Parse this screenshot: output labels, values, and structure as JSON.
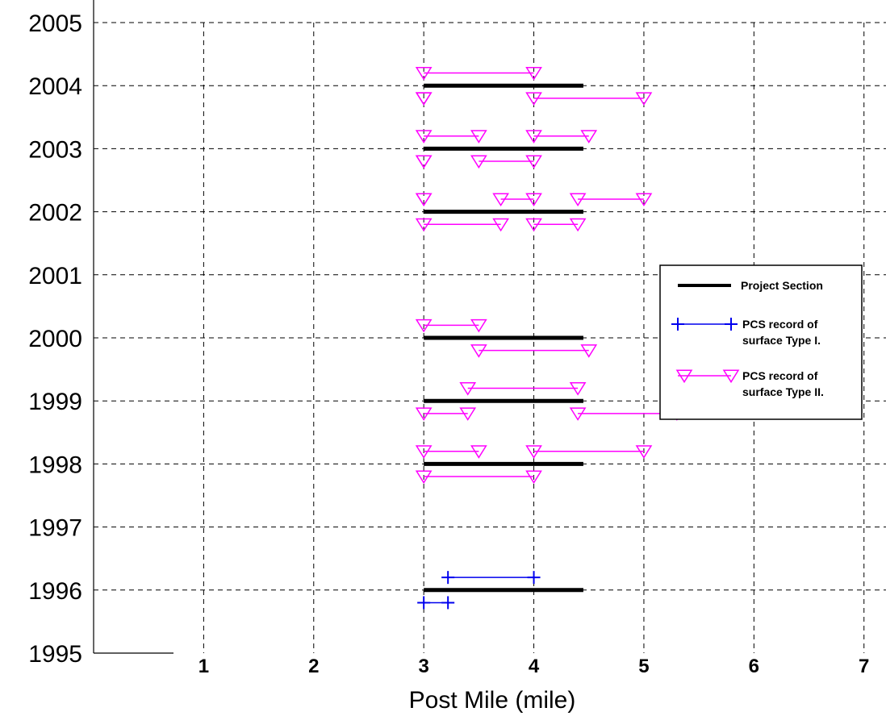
{
  "chart_data": {
    "type": "line",
    "title": "",
    "xlabel": "Post Mile (mile)",
    "ylabel": "",
    "xlim": [
      0,
      7.2
    ],
    "ylim": [
      1995,
      2005
    ],
    "x_ticks": [
      1,
      2,
      3,
      4,
      5,
      6,
      7
    ],
    "y_ticks": [
      1995,
      1996,
      1997,
      1998,
      1999,
      2000,
      2001,
      2002,
      2003,
      2004,
      2005
    ],
    "grid": true,
    "legend_position": "right",
    "legend": [
      {
        "label": "Project Section",
        "series": "project_section"
      },
      {
        "label": "PCS record of",
        "label2": "surface Type I.",
        "series": "type1"
      },
      {
        "label": "PCS record of",
        "label2": "surface Type II.",
        "series": "type2"
      }
    ],
    "series": [
      {
        "id": "project_section",
        "color": "#000000",
        "marker": "none",
        "segments": [
          {
            "x": [
              3.0,
              4.45
            ],
            "y": 1996.0
          },
          {
            "x": [
              3.0,
              4.45
            ],
            "y": 1998.0
          },
          {
            "x": [
              3.0,
              4.45
            ],
            "y": 1999.0
          },
          {
            "x": [
              3.0,
              4.45
            ],
            "y": 2000.0
          },
          {
            "x": [
              3.0,
              4.45
            ],
            "y": 2002.0
          },
          {
            "x": [
              3.0,
              4.45
            ],
            "y": 2003.0
          },
          {
            "x": [
              3.0,
              4.45
            ],
            "y": 2004.0
          }
        ]
      },
      {
        "id": "type1",
        "color": "#0000ee",
        "marker": "plus",
        "segments": [
          {
            "x": [
              3.22,
              4.0
            ],
            "y": 1996.2
          },
          {
            "x": [
              3.0,
              3.22
            ],
            "y": 1995.8
          }
        ]
      },
      {
        "id": "type2",
        "color": "#ff00ff",
        "marker": "triangle-down",
        "segments": [
          {
            "x": [
              3.0,
              3.5
            ],
            "y": 1998.2
          },
          {
            "x": [
              4.0,
              5.0
            ],
            "y": 1998.2
          },
          {
            "x": [
              3.0,
              4.0
            ],
            "y": 1997.8
          },
          {
            "x": [
              3.4,
              4.4
            ],
            "y": 1999.2
          },
          {
            "x": [
              3.0,
              3.4
            ],
            "y": 1998.8
          },
          {
            "x": [
              4.4,
              5.3
            ],
            "y": 1998.8
          },
          {
            "x": [
              3.0,
              3.5
            ],
            "y": 2000.2
          },
          {
            "x": [
              3.5,
              4.5
            ],
            "y": 1999.8
          },
          {
            "x": [
              3.0,
              3.0
            ],
            "y": 2002.2
          },
          {
            "x": [
              3.7,
              4.0
            ],
            "y": 2002.2
          },
          {
            "x": [
              4.4,
              5.0
            ],
            "y": 2002.2
          },
          {
            "x": [
              3.0,
              3.7
            ],
            "y": 2001.8
          },
          {
            "x": [
              4.0,
              4.4
            ],
            "y": 2001.8
          },
          {
            "x": [
              3.0,
              3.5
            ],
            "y": 2003.2
          },
          {
            "x": [
              4.0,
              4.5
            ],
            "y": 2003.2
          },
          {
            "x": [
              3.0,
              3.0
            ],
            "y": 2002.8
          },
          {
            "x": [
              3.5,
              4.0
            ],
            "y": 2002.8
          },
          {
            "x": [
              3.0,
              4.0
            ],
            "y": 2004.2
          },
          {
            "x": [
              3.0,
              3.0
            ],
            "y": 2003.8
          },
          {
            "x": [
              4.0,
              5.0
            ],
            "y": 2003.8
          }
        ]
      }
    ]
  }
}
